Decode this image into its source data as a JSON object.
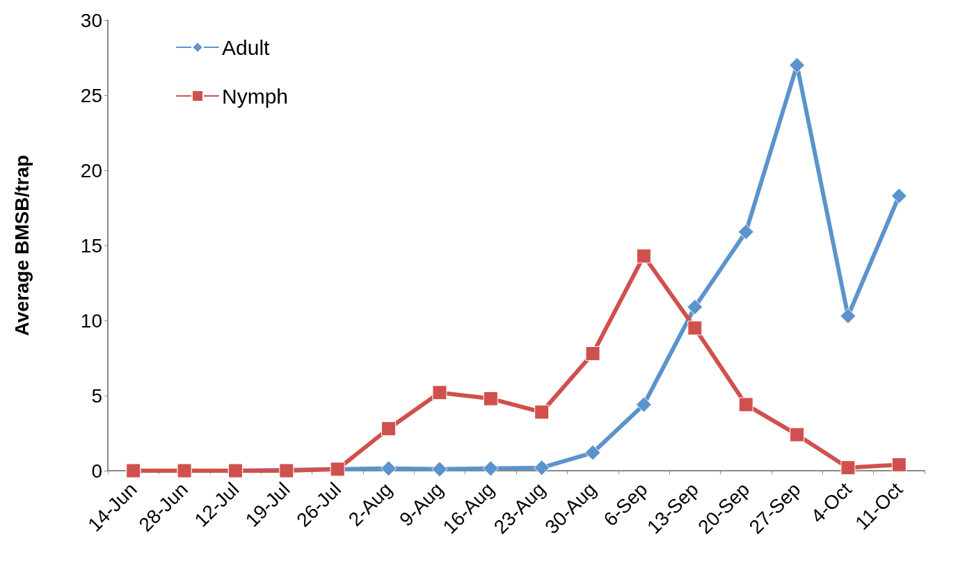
{
  "chart_data": {
    "type": "line",
    "ylabel": "Average BMSB/trap",
    "categories": [
      "14-Jun",
      "28-Jun",
      "12-Jul",
      "19-Jul",
      "26-Jul",
      "2-Aug",
      "9-Aug",
      "16-Aug",
      "23-Aug",
      "30-Aug",
      "6-Sep",
      "13-Sep",
      "20-Sep",
      "27-Sep",
      "4-Oct",
      "11-Oct"
    ],
    "series": [
      {
        "name": "Adult",
        "color": "#5b93cc",
        "marker": "diamond",
        "values": [
          0,
          0,
          0,
          null,
          null,
          0.15,
          0.1,
          0.15,
          0.2,
          1.2,
          4.4,
          10.9,
          15.9,
          27.0,
          10.3,
          18.3
        ]
      },
      {
        "name": "Nymph",
        "color": "#d0504d",
        "marker": "square",
        "values": [
          0,
          0,
          0,
          0,
          0.1,
          2.8,
          5.2,
          4.8,
          3.9,
          7.8,
          14.3,
          9.5,
          4.4,
          2.4,
          0.2,
          0.4
        ]
      }
    ],
    "ylim": [
      0,
      30
    ],
    "yticks": [
      0,
      5,
      10,
      15,
      20,
      25,
      30
    ],
    "grid": false,
    "legend": "top left",
    "line_style": "solid"
  }
}
